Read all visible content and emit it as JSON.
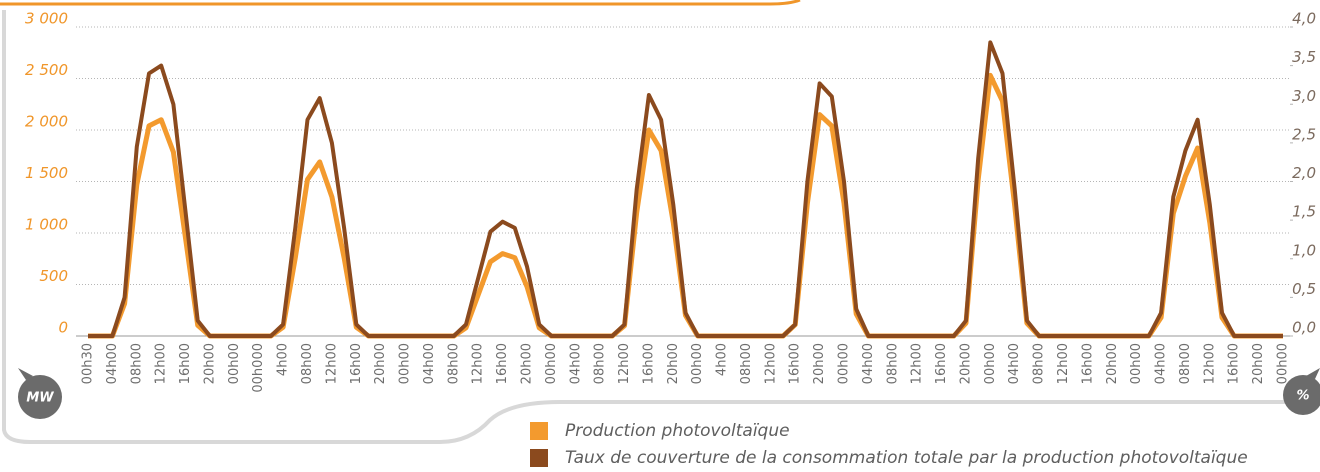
{
  "chart_data": {
    "type": "line",
    "y_unit": "MW",
    "y2_unit": "%",
    "categories": [
      "00h30",
      null,
      "04h00",
      null,
      "08h00",
      null,
      "12h00",
      null,
      "16h00",
      null,
      "20h00",
      null,
      "00h00",
      null,
      "00h000",
      null,
      "4h00",
      null,
      "08h00",
      null,
      "12h00",
      null,
      "16h00",
      null,
      "20h00",
      null,
      "00h00",
      null,
      "04h00",
      null,
      "08h00",
      null,
      "12h00",
      null,
      "16h00",
      null,
      "20h00",
      null,
      "00h00",
      null,
      "04h00",
      null,
      "08h00",
      null,
      "12h00",
      null,
      "16h00",
      null,
      "20h00",
      null,
      "00h00",
      null,
      "4h00",
      null,
      "08h00",
      null,
      "12h00",
      null,
      "16h00",
      null,
      "20h00",
      null,
      "00h00",
      null,
      "04h00",
      null,
      "08h00",
      null,
      "12h00",
      null,
      "16h00",
      null,
      "20h00",
      null,
      "00h00",
      null,
      "04h00",
      null,
      "08h00",
      null,
      "12h00",
      null,
      "16h00",
      null,
      "20h00",
      null,
      "00h00",
      null,
      "04h00",
      null,
      "08h00",
      null,
      "12h00",
      null,
      "16h00",
      null,
      "20h00",
      null,
      "00h00"
    ],
    "series": [
      {
        "name": "Production photovoltaïque",
        "color": "#f39a2e",
        "axis": "y",
        "values": [
          0,
          0,
          0,
          315,
          1470,
          2040,
          2100,
          1785,
          945,
          105,
          0,
          0,
          0,
          0,
          0,
          0,
          85,
          760,
          1520,
          1690,
          1350,
          760,
          85,
          0,
          0,
          0,
          0,
          0,
          0,
          0,
          0,
          80,
          400,
          720,
          800,
          760,
          480,
          80,
          0,
          0,
          0,
          0,
          0,
          0,
          100,
          1200,
          2000,
          1800,
          1100,
          200,
          0,
          0,
          0,
          0,
          0,
          0,
          0,
          0,
          110,
          1290,
          2150,
          2040,
          1290,
          215,
          0,
          0,
          0,
          0,
          0,
          0,
          0,
          0,
          125,
          1520,
          2530,
          2280,
          1265,
          125,
          0,
          0,
          0,
          0,
          0,
          0,
          0,
          0,
          0,
          0,
          180,
          1190,
          1550,
          1825,
          1100,
          180,
          0,
          0,
          0,
          0,
          0
        ]
      },
      {
        "name": "Taux de couverture de la consommation totale par la production photovoltaïque",
        "color": "#8b4a1e",
        "axis": "y2",
        "values": [
          0,
          0,
          0,
          0.5,
          2.45,
          3.4,
          3.5,
          3,
          1.6,
          0.2,
          0,
          0,
          0,
          0,
          0,
          0,
          0.15,
          1.4,
          2.8,
          3.08,
          2.5,
          1.4,
          0.15,
          0,
          0,
          0,
          0,
          0,
          0,
          0,
          0,
          0.15,
          0.75,
          1.35,
          1.48,
          1.4,
          0.9,
          0.15,
          0,
          0,
          0,
          0,
          0,
          0,
          0.15,
          1.9,
          3.12,
          2.8,
          1.7,
          0.3,
          0,
          0,
          0,
          0,
          0,
          0,
          0,
          0,
          0.15,
          2,
          3.27,
          3.1,
          2,
          0.35,
          0,
          0,
          0,
          0,
          0,
          0,
          0,
          0,
          0.2,
          2.3,
          3.8,
          3.4,
          1.9,
          0.2,
          0,
          0,
          0,
          0,
          0,
          0,
          0,
          0,
          0,
          0,
          0.3,
          1.8,
          2.4,
          2.8,
          1.7,
          0.3,
          0,
          0,
          0,
          0,
          0
        ]
      }
    ],
    "ylim": [
      0,
      3000
    ],
    "yticks": [
      0,
      500,
      {
        "value": 1000,
        "label": "1 000"
      },
      {
        "value": 1500,
        "label": "1 500"
      },
      {
        "value": 2000,
        "label": "2 000"
      },
      {
        "value": 2500,
        "label": "2 500"
      },
      {
        "value": 3000,
        "label": "3 000"
      }
    ],
    "y2lim": [
      0,
      4
    ],
    "y2ticks": [
      {
        "value": 0,
        "label": "0,0"
      },
      {
        "value": 0.5,
        "label": "0,5"
      },
      {
        "value": 1,
        "label": "1,0"
      },
      {
        "value": 1.5,
        "label": "1,5"
      },
      {
        "value": 2,
        "label": "2,0"
      },
      {
        "value": 2.5,
        "label": "2,5"
      },
      {
        "value": 3,
        "label": "3,0"
      },
      {
        "value": 3.5,
        "label": "3,5"
      },
      {
        "value": 4,
        "label": "4,0"
      }
    ],
    "grid": true
  }
}
